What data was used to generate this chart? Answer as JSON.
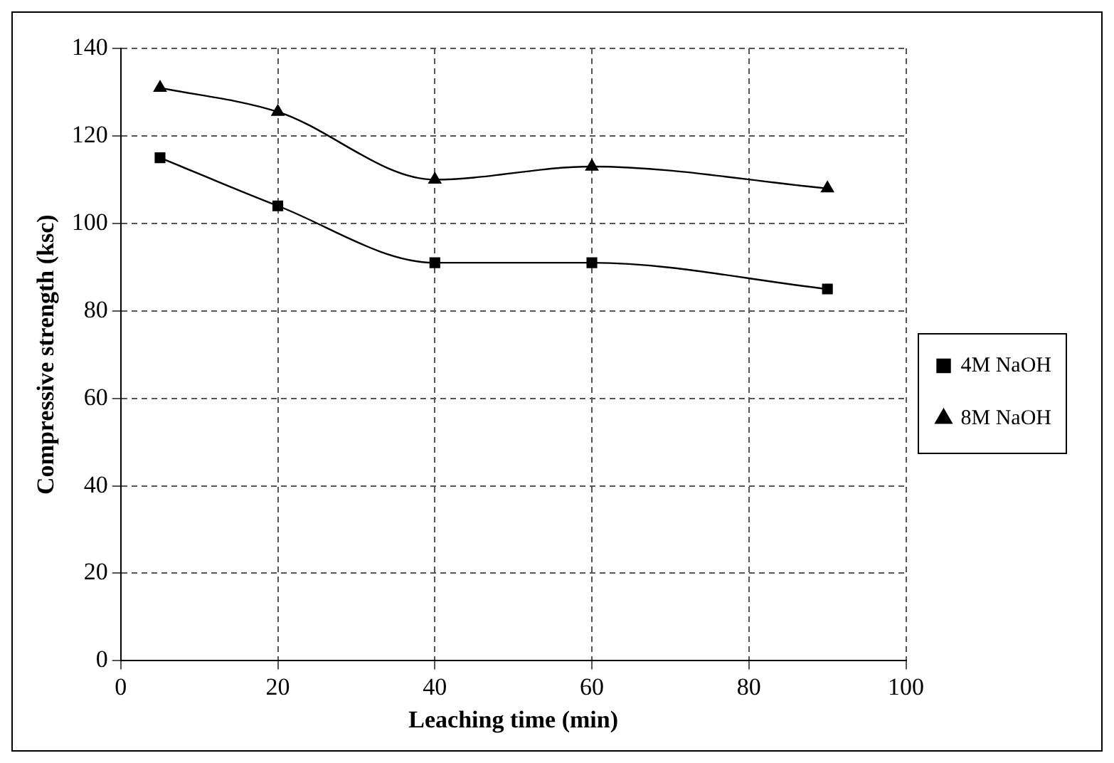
{
  "chart_data": {
    "type": "line",
    "xlabel": "Leaching time (min)",
    "ylabel": "Compressive strength (ksc)",
    "x": [
      5,
      20,
      40,
      60,
      90
    ],
    "series": [
      {
        "name": "4M NaOH",
        "color": "#000000",
        "marker": "square",
        "values": [
          115,
          104,
          91,
          91,
          85
        ]
      },
      {
        "name": "8M NaOH",
        "color": "#000000",
        "marker": "triangle",
        "values": [
          131,
          125.5,
          110,
          113,
          108
        ]
      }
    ],
    "xlim": [
      0,
      100
    ],
    "xticks": [
      0,
      20,
      40,
      60,
      80,
      100
    ],
    "ylim": [
      0,
      140
    ],
    "yticks": [
      0,
      20,
      40,
      60,
      80,
      100,
      120,
      140
    ],
    "grid": true,
    "legend": "right",
    "line_style": "solid"
  }
}
